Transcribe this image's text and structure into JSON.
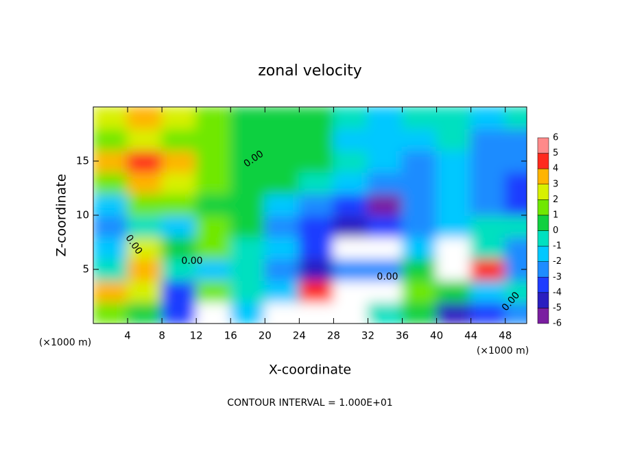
{
  "chart_data": {
    "type": "heatmap",
    "title": "zonal velocity",
    "x_label": "X-coordinate",
    "y_label": "Z-coordinate",
    "x_unit": "(×1000 m)",
    "footer": "CONTOUR INTERVAL = 1.000E+01",
    "contour_labels": [
      "0.00",
      "0.00",
      "0.00",
      "0.00",
      "0.00"
    ],
    "x": [
      2,
      6,
      10,
      14,
      18,
      22,
      26,
      30,
      34,
      38,
      42,
      46,
      50
    ],
    "y": [
      1,
      3,
      5,
      7,
      9,
      11,
      13,
      15,
      17,
      19
    ],
    "z": [
      [
        1,
        0,
        -4,
        7,
        -2,
        7,
        7,
        7,
        -1,
        0,
        -5,
        -4,
        -3
      ],
      [
        3,
        2,
        -4,
        1,
        -1,
        -2,
        4,
        6,
        7,
        1,
        0,
        -2,
        -1
      ],
      [
        -1,
        3,
        -1,
        -2,
        -1,
        -3,
        -5,
        -3,
        -3,
        0,
        7,
        4,
        -3
      ],
      [
        -2,
        2,
        0,
        1,
        -1,
        -2,
        -4,
        7,
        7,
        -2,
        6,
        -1,
        -3
      ],
      [
        -3,
        -1,
        -2,
        1,
        0,
        -3,
        -4,
        -5,
        -4,
        -3,
        -2,
        -1,
        -1
      ],
      [
        -2,
        1,
        1,
        0.5,
        0,
        -2,
        -3,
        -4,
        -6,
        -3,
        -2,
        -3,
        -4
      ],
      [
        1.5,
        3,
        2.5,
        1,
        0.5,
        0,
        -0.5,
        -1.5,
        -3,
        -3,
        -2,
        -3,
        -4
      ],
      [
        3,
        4,
        3,
        1,
        0.5,
        0,
        0,
        -1,
        -2,
        -2.5,
        -2,
        -3,
        -3
      ],
      [
        1.5,
        2,
        1.5,
        1,
        0.5,
        0,
        0.5,
        -1.5,
        -2,
        -2,
        -1,
        -3,
        -2.5
      ],
      [
        2.5,
        3,
        2,
        1,
        0.5,
        0,
        0.5,
        -1,
        -2,
        -1,
        -0.5,
        -2,
        -1
      ]
    ],
    "xlim": [
      0,
      50.5
    ],
    "ylim": [
      0,
      20
    ],
    "xticks": [
      4,
      8,
      12,
      16,
      20,
      24,
      28,
      32,
      36,
      40,
      44,
      48
    ],
    "yticks": [
      5,
      10,
      15
    ],
    "levels": [
      -6,
      -5,
      -4,
      -3,
      -2,
      -1,
      0,
      1,
      2,
      3,
      4,
      5,
      6
    ],
    "colors": [
      "#7a1ea0",
      "#2a1ec0",
      "#1e3cff",
      "#1e8cff",
      "#00c8ff",
      "#00e0c0",
      "#10d040",
      "#70e800",
      "#d8f000",
      "#ffb400",
      "#ff2a1e",
      "#ff8a8a"
    ],
    "over_color": "#ffffff",
    "under_color": "#5a0a7a"
  }
}
